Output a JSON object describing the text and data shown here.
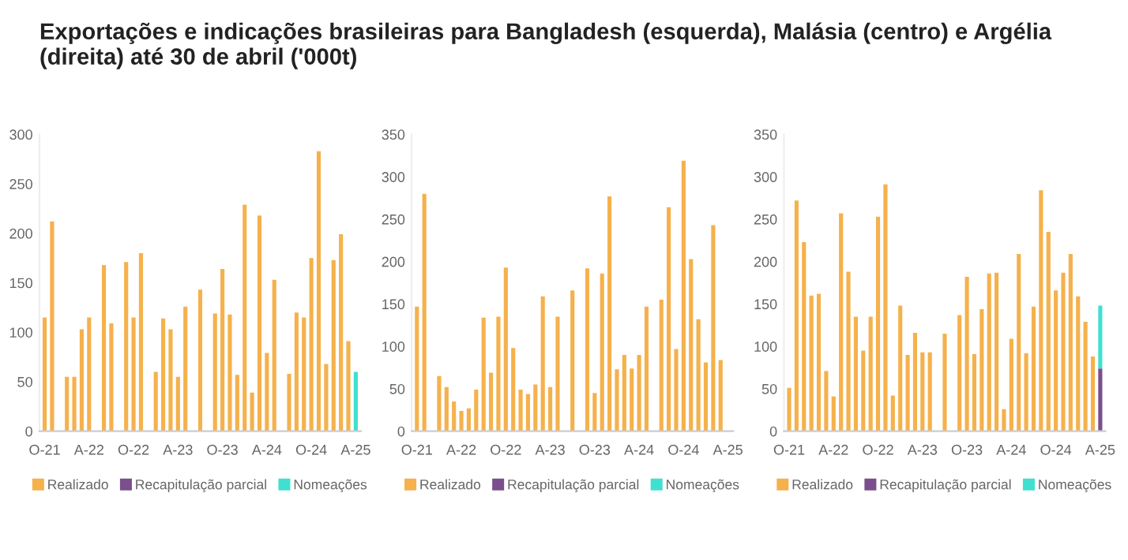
{
  "chart_data": [
    {
      "type": "bar",
      "title": "Exportações e indicações brasileiras para Bangladesh (esquerda), Malásia (centro) e Argélia (direita) até 30 de abril ('000t)",
      "categories": [
        "O-21",
        null,
        null,
        null,
        null,
        null,
        "A-22",
        null,
        null,
        null,
        null,
        null,
        "O-22",
        null,
        null,
        null,
        null,
        null,
        "A-23",
        null,
        null,
        null,
        null,
        null,
        "O-23",
        null,
        null,
        null,
        null,
        null,
        "A-24",
        null,
        null,
        null,
        null,
        null,
        "O-24",
        null,
        null,
        null,
        null,
        null,
        "A-25"
      ],
      "stacked": true,
      "ylim": [
        0,
        300
      ],
      "yticks": [
        0,
        50,
        100,
        150,
        200,
        250,
        300
      ],
      "legend": "bottom",
      "grid": false,
      "series": [
        {
          "name": "Realizado",
          "color": "#f5b14c",
          "values": [
            115,
            212,
            null,
            55,
            55,
            103,
            115,
            null,
            168,
            109,
            null,
            171,
            115,
            180,
            null,
            60,
            114,
            103,
            55,
            126,
            null,
            143,
            null,
            119,
            164,
            118,
            57,
            229,
            39,
            218,
            79,
            153,
            null,
            58,
            120,
            115,
            175,
            283,
            68,
            173,
            199,
            91,
            null
          ]
        },
        {
          "name": "Recapitulação parcial",
          "color": "#7b4f8c",
          "values": [
            null,
            null,
            null,
            null,
            null,
            null,
            null,
            null,
            null,
            null,
            null,
            null,
            null,
            null,
            null,
            null,
            null,
            null,
            null,
            null,
            null,
            null,
            null,
            null,
            null,
            null,
            null,
            null,
            null,
            null,
            null,
            null,
            null,
            null,
            null,
            null,
            null,
            null,
            null,
            null,
            null,
            null,
            null
          ]
        },
        {
          "name": "Nomeações",
          "color": "#40e0d0",
          "values": [
            null,
            null,
            null,
            null,
            null,
            null,
            null,
            null,
            null,
            null,
            null,
            null,
            null,
            null,
            null,
            null,
            null,
            null,
            null,
            null,
            null,
            null,
            null,
            null,
            null,
            null,
            null,
            null,
            null,
            null,
            null,
            null,
            null,
            null,
            null,
            null,
            null,
            null,
            null,
            null,
            null,
            null,
            60
          ]
        }
      ]
    },
    {
      "type": "bar",
      "categories": [
        "O-21",
        null,
        null,
        null,
        null,
        null,
        "A-22",
        null,
        null,
        null,
        null,
        null,
        "O-22",
        null,
        null,
        null,
        null,
        null,
        "A-23",
        null,
        null,
        null,
        null,
        null,
        "O-23",
        null,
        null,
        null,
        null,
        null,
        "A-24",
        null,
        null,
        null,
        null,
        null,
        "O-24",
        null,
        null,
        null,
        null,
        null,
        "A-25"
      ],
      "stacked": true,
      "ylim": [
        0,
        350
      ],
      "yticks": [
        0,
        50,
        100,
        150,
        200,
        250,
        300,
        350
      ],
      "legend": "bottom",
      "grid": false,
      "series": [
        {
          "name": "Realizado",
          "color": "#f5b14c",
          "values": [
            147,
            280,
            null,
            65,
            52,
            35,
            24,
            27,
            49,
            134,
            69,
            135,
            193,
            98,
            49,
            44,
            55,
            159,
            52,
            135,
            null,
            166,
            null,
            192,
            45,
            186,
            277,
            73,
            90,
            74,
            90,
            147,
            null,
            155,
            264,
            97,
            319,
            203,
            132,
            81,
            243,
            84,
            null
          ]
        },
        {
          "name": "Recapitulação parcial",
          "color": "#7b4f8c",
          "values": [
            null,
            null,
            null,
            null,
            null,
            null,
            null,
            null,
            null,
            null,
            null,
            null,
            null,
            null,
            null,
            null,
            null,
            null,
            null,
            null,
            null,
            null,
            null,
            null,
            null,
            null,
            null,
            null,
            null,
            null,
            null,
            null,
            null,
            null,
            null,
            null,
            null,
            null,
            null,
            null,
            null,
            null,
            null
          ]
        },
        {
          "name": "Nomeações",
          "color": "#40e0d0",
          "values": [
            null,
            null,
            null,
            null,
            null,
            null,
            null,
            null,
            null,
            null,
            null,
            null,
            null,
            null,
            null,
            null,
            null,
            null,
            null,
            null,
            null,
            null,
            null,
            null,
            null,
            null,
            null,
            null,
            null,
            null,
            null,
            null,
            null,
            null,
            null,
            null,
            null,
            null,
            null,
            null,
            null,
            null,
            null
          ]
        }
      ]
    },
    {
      "type": "bar",
      "categories": [
        "O-21",
        null,
        null,
        null,
        null,
        null,
        "A-22",
        null,
        null,
        null,
        null,
        null,
        "O-22",
        null,
        null,
        null,
        null,
        null,
        "A-23",
        null,
        null,
        null,
        null,
        null,
        "O-23",
        null,
        null,
        null,
        null,
        null,
        "A-24",
        null,
        null,
        null,
        null,
        null,
        "O-24",
        null,
        null,
        null,
        null,
        null,
        "A-25"
      ],
      "stacked": true,
      "ylim": [
        0,
        350
      ],
      "yticks": [
        0,
        50,
        100,
        150,
        200,
        250,
        300,
        350
      ],
      "legend": "bottom",
      "grid": false,
      "series": [
        {
          "name": "Realizado",
          "color": "#f5b14c",
          "values": [
            51,
            272,
            223,
            160,
            162,
            71,
            41,
            257,
            188,
            135,
            95,
            135,
            253,
            291,
            42,
            148,
            90,
            116,
            93,
            93,
            null,
            115,
            null,
            137,
            182,
            91,
            144,
            186,
            187,
            26,
            109,
            209,
            92,
            147,
            284,
            235,
            166,
            187,
            209,
            159,
            129,
            88,
            null
          ]
        },
        {
          "name": "Recapitulação parcial",
          "color": "#7b4f8c",
          "values": [
            null,
            null,
            null,
            null,
            null,
            null,
            null,
            null,
            null,
            null,
            null,
            null,
            null,
            null,
            null,
            null,
            null,
            null,
            null,
            null,
            null,
            null,
            null,
            null,
            null,
            null,
            null,
            null,
            null,
            null,
            null,
            null,
            null,
            null,
            null,
            null,
            null,
            null,
            null,
            null,
            null,
            null,
            74
          ]
        },
        {
          "name": "Nomeações",
          "color": "#40e0d0",
          "values": [
            null,
            null,
            null,
            null,
            null,
            null,
            null,
            null,
            null,
            null,
            null,
            null,
            null,
            null,
            null,
            null,
            null,
            null,
            null,
            null,
            null,
            null,
            null,
            null,
            null,
            null,
            null,
            null,
            null,
            null,
            null,
            null,
            null,
            null,
            null,
            null,
            null,
            null,
            null,
            null,
            null,
            null,
            74
          ]
        }
      ]
    }
  ]
}
